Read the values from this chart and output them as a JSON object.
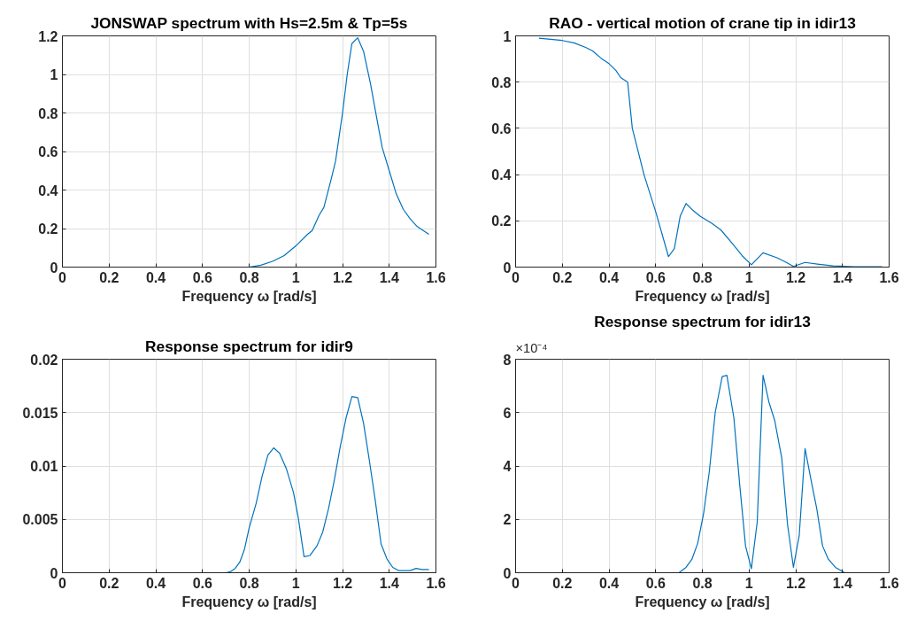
{
  "chart_data": [
    {
      "type": "line",
      "title": "JONSWAP spectrum with Hs=2.5m & Tp=5s",
      "xlabel": "Frequency ω [rad/s]",
      "color": "#0072bd",
      "grid": true,
      "xlim": [
        0,
        1.6
      ],
      "ylim": [
        0,
        1.2
      ],
      "xticks": [
        0,
        0.2,
        0.4,
        0.6,
        0.8,
        1,
        1.2,
        1.4,
        1.6
      ],
      "yticks": [
        0,
        0.2,
        0.4,
        0.6,
        0.8,
        1,
        1.2
      ],
      "x": [
        0.1,
        0.8,
        0.85,
        0.9,
        0.95,
        1.0,
        1.05,
        1.07,
        1.1,
        1.12,
        1.15,
        1.17,
        1.2,
        1.22,
        1.24,
        1.265,
        1.29,
        1.32,
        1.35,
        1.37,
        1.4,
        1.43,
        1.46,
        1.49,
        1.52,
        1.57
      ],
      "values": [
        0,
        0,
        0.01,
        0.03,
        0.06,
        0.11,
        0.17,
        0.19,
        0.27,
        0.31,
        0.45,
        0.55,
        0.8,
        1.0,
        1.16,
        1.19,
        1.12,
        0.95,
        0.75,
        0.62,
        0.5,
        0.38,
        0.3,
        0.25,
        0.21,
        0.17
      ]
    },
    {
      "type": "line",
      "title": "RAO - vertical motion of crane tip in idir13",
      "xlabel": "Frequency ω [rad/s]",
      "color": "#0072bd",
      "grid": true,
      "xlim": [
        0,
        1.6
      ],
      "ylim": [
        0,
        1
      ],
      "xticks": [
        0,
        0.2,
        0.4,
        0.6,
        0.8,
        1,
        1.2,
        1.4,
        1.6
      ],
      "yticks": [
        0,
        0.2,
        0.4,
        0.6,
        0.8,
        1
      ],
      "x": [
        0.1,
        0.2,
        0.25,
        0.3,
        0.33,
        0.37,
        0.4,
        0.43,
        0.45,
        0.48,
        0.5,
        0.53,
        0.55,
        0.6,
        0.655,
        0.68,
        0.705,
        0.73,
        0.76,
        0.79,
        0.84,
        0.88,
        0.93,
        0.97,
        1.01,
        1.06,
        1.12,
        1.16,
        1.19,
        1.24,
        1.3,
        1.36,
        1.45,
        1.57
      ],
      "values": [
        0.99,
        0.98,
        0.97,
        0.95,
        0.935,
        0.9,
        0.88,
        0.85,
        0.82,
        0.8,
        0.6,
        0.48,
        0.4,
        0.24,
        0.045,
        0.08,
        0.22,
        0.275,
        0.245,
        0.22,
        0.19,
        0.16,
        0.1,
        0.05,
        0.01,
        0.062,
        0.04,
        0.02,
        0.003,
        0.02,
        0.012,
        0.005,
        0.002,
        0.002
      ]
    },
    {
      "type": "line",
      "title": "Response spectrum for idir9",
      "xlabel": "Frequency ω [rad/s]",
      "color": "#0072bd",
      "grid": true,
      "xlim": [
        0,
        1.6
      ],
      "ylim": [
        0,
        0.02
      ],
      "xticks": [
        0,
        0.2,
        0.4,
        0.6,
        0.8,
        1,
        1.2,
        1.4,
        1.6
      ],
      "yticks": [
        0,
        0.005,
        0.01,
        0.015,
        0.02
      ],
      "x": [
        0.1,
        0.7,
        0.72,
        0.74,
        0.76,
        0.78,
        0.8,
        0.83,
        0.855,
        0.88,
        0.905,
        0.93,
        0.96,
        0.99,
        1.01,
        1.035,
        1.06,
        1.09,
        1.115,
        1.14,
        1.165,
        1.19,
        1.215,
        1.24,
        1.265,
        1.29,
        1.315,
        1.34,
        1.365,
        1.39,
        1.415,
        1.44,
        1.49,
        1.515,
        1.54,
        1.57
      ],
      "values": [
        0,
        0,
        0.0001,
        0.0004,
        0.001,
        0.0022,
        0.0042,
        0.0065,
        0.009,
        0.011,
        0.0117,
        0.0112,
        0.0097,
        0.0075,
        0.0052,
        0.0015,
        0.0016,
        0.0025,
        0.0038,
        0.006,
        0.0087,
        0.0118,
        0.0145,
        0.0165,
        0.0164,
        0.014,
        0.0105,
        0.0068,
        0.0027,
        0.0013,
        0.0005,
        0.0002,
        0.0002,
        0.0004,
        0.0003,
        0.0003
      ]
    },
    {
      "type": "line",
      "title": "Response spectrum for idir13",
      "xlabel": "Frequency ω [rad/s]",
      "color": "#0072bd",
      "grid": true,
      "xlim": [
        0,
        1.6
      ],
      "ylim": [
        0,
        8
      ],
      "xticks": [
        0,
        0.2,
        0.4,
        0.6,
        0.8,
        1,
        1.2,
        1.4,
        1.6
      ],
      "yticks": [
        0,
        2,
        4,
        6,
        8
      ],
      "annotations": [
        "×10⁻⁴"
      ],
      "x": [
        0.1,
        0.7,
        0.73,
        0.755,
        0.78,
        0.805,
        0.83,
        0.855,
        0.885,
        0.905,
        0.935,
        0.96,
        0.985,
        1.01,
        1.035,
        1.06,
        1.085,
        1.11,
        1.14,
        1.165,
        1.19,
        1.215,
        1.24,
        1.265,
        1.29,
        1.315,
        1.34,
        1.37,
        1.41,
        1.57
      ],
      "values": [
        0,
        0,
        0.2,
        0.5,
        1.1,
        2.2,
        3.8,
        6.0,
        7.35,
        7.4,
        5.8,
        3.3,
        1.0,
        0.15,
        1.9,
        7.4,
        6.4,
        5.7,
        4.3,
        1.8,
        0.2,
        1.4,
        4.65,
        3.5,
        2.4,
        1.0,
        0.5,
        0.2,
        0,
        0
      ]
    }
  ]
}
